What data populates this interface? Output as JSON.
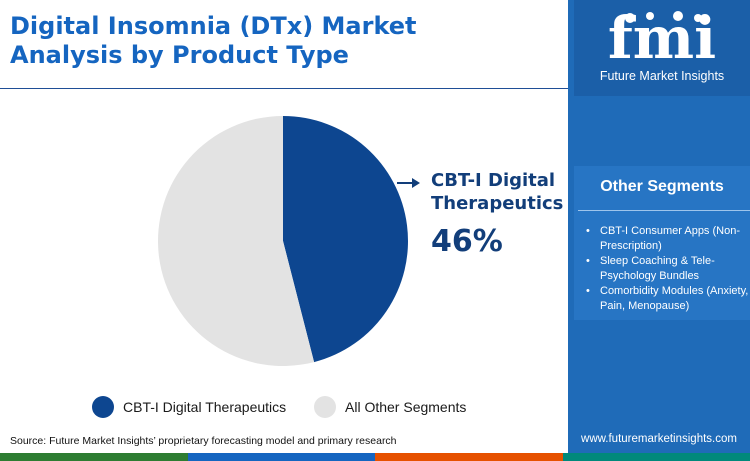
{
  "title": "Digital Insomnia (DTx) Market Analysis by Product Type",
  "brand": {
    "logo_text": "fmi",
    "caption": "Future Market Insights",
    "website": "www.futuremarketinsights.com"
  },
  "colors": {
    "title": "#1565c0",
    "cbti": "#0d4690",
    "other": "#e3e3e3",
    "sidebar": "#1f6bb8",
    "footer": [
      "#2e7d32",
      "#1565c0",
      "#e65100",
      "#00897b"
    ]
  },
  "chart_data": {
    "type": "pie",
    "slices": [
      {
        "label": "CBT-I Digital Therapeutics",
        "value": 46,
        "color": "#0d4690"
      },
      {
        "label": "All Other Segments",
        "value": 54,
        "color": "#e3e3e3"
      }
    ],
    "unit": "%",
    "legend_position": "bottom",
    "callout": {
      "label": "CBT-I Digital Therapeutics",
      "value": "46%"
    }
  },
  "other_segments": {
    "title": "Other Segments",
    "items": [
      "CBT-I Consumer Apps (Non-Prescription)",
      "Sleep Coaching & Tele-Psychology Bundles",
      "Comorbidity Modules (Anxiety, Pain, Menopause)"
    ]
  },
  "source": "Source: Future Market Insights’ proprietary forecasting model and primary research"
}
